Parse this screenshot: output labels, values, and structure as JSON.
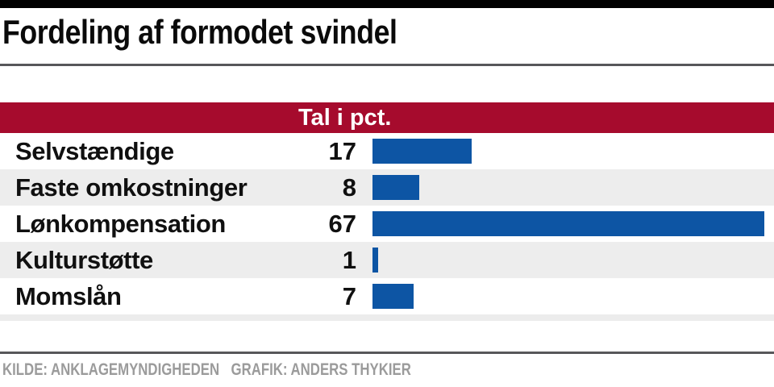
{
  "header": {
    "title": "Fordeling af formodet svindel"
  },
  "table": {
    "header_label": "Tal i pct.",
    "rows": [
      {
        "label": "Selvstændige",
        "value": 17
      },
      {
        "label": "Faste omkostninger",
        "value": 8
      },
      {
        "label": "Lønkompensation",
        "value": 67
      },
      {
        "label": "Kulturstøtte",
        "value": 1
      },
      {
        "label": "Momslån",
        "value": 7
      }
    ]
  },
  "footer": {
    "source": "KILDE: ANKLAGEMYNDIGHEDEN",
    "credit": "GRAFIK: ANDERS THYKIER"
  },
  "colors": {
    "top_bar": "#000000",
    "accent_red": "#a60b2d",
    "bar_blue": "#0d55a4",
    "row_alt": "#ededed",
    "rule_gray": "#57575a",
    "footer_text": "#9b9b9b"
  },
  "chart_data": {
    "type": "bar",
    "orientation": "horizontal",
    "title": "Fordeling af formodet svindel",
    "unit_label": "Tal i pct.",
    "categories": [
      "Selvstændige",
      "Faste omkostninger",
      "Lønkompensation",
      "Kulturstøtte",
      "Momslån"
    ],
    "values": [
      17,
      8,
      67,
      1,
      7
    ],
    "xlim": [
      0,
      67
    ],
    "bar_color": "#0d55a4",
    "value_labels_shown": true,
    "grid": false,
    "legend": false,
    "source": "KILDE: ANKLAGEMYNDIGHEDEN",
    "credit": "GRAFIK: ANDERS THYKIER"
  }
}
